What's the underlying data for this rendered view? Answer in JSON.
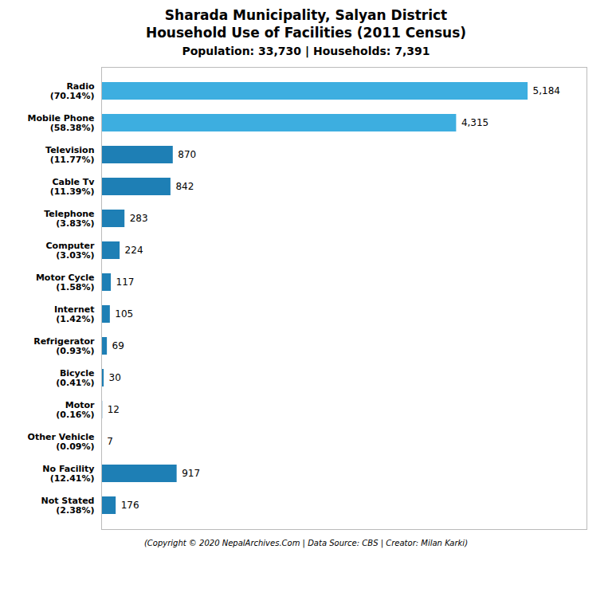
{
  "chart_data": {
    "type": "bar",
    "orientation": "horizontal",
    "title": "Sharada Municipality, Salyan District\nHousehold Use of Facilities (2011 Census)",
    "subtitle": "Population: 33,730 | Households: 7,391",
    "caption": "(Copyright © 2020 NepalArchives.Com | Data Source: CBS | Creator: Milan Karki)",
    "categories": [
      "Radio\n(70.14%)",
      "Mobile Phone\n(58.38%)",
      "Television\n(11.77%)",
      "Cable Tv\n(11.39%)",
      "Telephone\n(3.83%)",
      "Computer\n(3.03%)",
      "Motor Cycle\n(1.58%)",
      "Internet\n(1.42%)",
      "Refrigerator\n(0.93%)",
      "Bicycle\n(0.41%)",
      "Motor\n(0.16%)",
      "Other Vehicle\n(0.09%)",
      "No Facility\n(12.41%)",
      "Not Stated\n(2.38%)"
    ],
    "values": [
      5184,
      4315,
      870,
      842,
      283,
      224,
      117,
      105,
      69,
      30,
      12,
      7,
      917,
      176
    ],
    "value_labels": [
      "5,184",
      "4,315",
      "870",
      "842",
      "283",
      "224",
      "117",
      "105",
      "69",
      "30",
      "12",
      "7",
      "917",
      "176"
    ],
    "colors": [
      "#3daee0",
      "#3daee0",
      "#1e7fb5",
      "#1e7fb5",
      "#1e7fb5",
      "#1e7fb5",
      "#1e7fb5",
      "#1e7fb5",
      "#1e7fb5",
      "#1e7fb5",
      "#1e7fb5",
      "#1e7fb5",
      "#1e7fb5",
      "#1e7fb5"
    ],
    "xlim": [
      0,
      5900
    ],
    "data_labels": true,
    "tick_labels": "y",
    "grid": false
  }
}
